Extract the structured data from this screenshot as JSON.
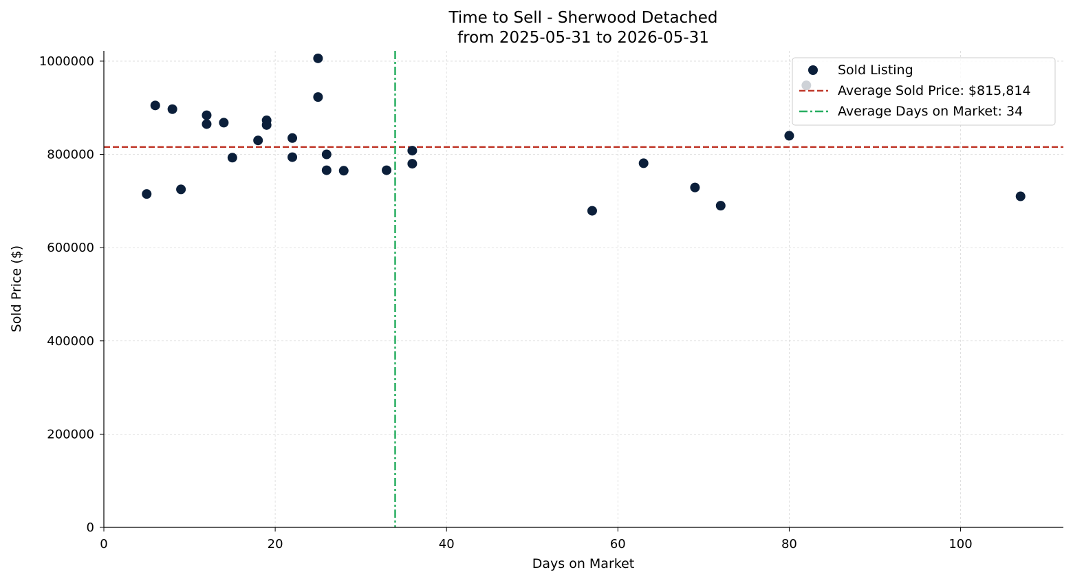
{
  "chart_data": {
    "type": "scatter",
    "title": "Time to Sell - Sherwood Detached",
    "subtitle": "from 2025-05-31 to 2026-05-31",
    "xlabel": "Days on Market",
    "ylabel": "Sold Price ($)",
    "xlim": [
      0,
      112
    ],
    "ylim": [
      0,
      1022000
    ],
    "x_ticks": [
      0,
      20,
      40,
      60,
      80,
      100
    ],
    "y_ticks": [
      0,
      200000,
      400000,
      600000,
      800000,
      1000000
    ],
    "grid": true,
    "legend_position": "top-right",
    "series": [
      {
        "name": "Sold Listing",
        "color": "#0b1f3a",
        "points": [
          {
            "x": 5,
            "y": 715000
          },
          {
            "x": 6,
            "y": 905000
          },
          {
            "x": 8,
            "y": 897000
          },
          {
            "x": 9,
            "y": 725000
          },
          {
            "x": 12,
            "y": 884000
          },
          {
            "x": 12,
            "y": 865000
          },
          {
            "x": 14,
            "y": 868000
          },
          {
            "x": 15,
            "y": 793000
          },
          {
            "x": 18,
            "y": 830000
          },
          {
            "x": 19,
            "y": 873000
          },
          {
            "x": 19,
            "y": 863000
          },
          {
            "x": 22,
            "y": 835000
          },
          {
            "x": 22,
            "y": 794000
          },
          {
            "x": 25,
            "y": 1006000
          },
          {
            "x": 25,
            "y": 923000
          },
          {
            "x": 26,
            "y": 800000
          },
          {
            "x": 26,
            "y": 766000
          },
          {
            "x": 28,
            "y": 765000
          },
          {
            "x": 33,
            "y": 766000
          },
          {
            "x": 36,
            "y": 808000
          },
          {
            "x": 36,
            "y": 780000
          },
          {
            "x": 57,
            "y": 679000
          },
          {
            "x": 63,
            "y": 781000
          },
          {
            "x": 69,
            "y": 729000
          },
          {
            "x": 72,
            "y": 690000
          },
          {
            "x": 80,
            "y": 840000
          },
          {
            "x": 82,
            "y": 948000
          },
          {
            "x": 107,
            "y": 710000
          }
        ]
      }
    ],
    "reference_lines": [
      {
        "orientation": "horizontal",
        "value": 815814,
        "name": "Average Sold Price: $815,814",
        "color": "#c0392b",
        "style": "dashed"
      },
      {
        "orientation": "vertical",
        "value": 34,
        "name": "Average Days on Market: 34",
        "color": "#27ae60",
        "style": "dashdot"
      }
    ]
  }
}
